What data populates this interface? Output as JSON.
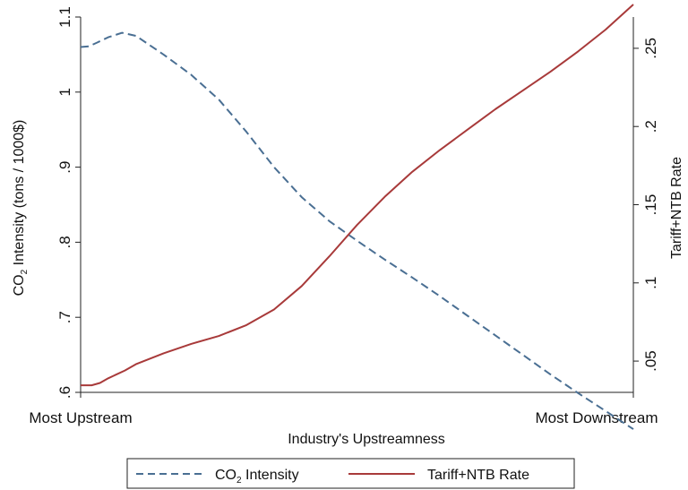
{
  "chart_data": {
    "type": "line",
    "title": "",
    "xlabel": "Industry's Upstreamness",
    "x_tick_labels": [
      "Most Upstream",
      "Most Downstream"
    ],
    "xlim": [
      0,
      1
    ],
    "ylabel_left": {
      "main": "CO",
      "sub": "2",
      "rest": " Intensity (tons / 1000$)"
    },
    "ylabel_right": "Tariff+NTB Rate",
    "ylim_left": [
      0.6,
      1.1
    ],
    "ylim_right": [
      0.03,
      0.27
    ],
    "y_left_ticks": [
      {
        "value": 0.6,
        "label": ".6"
      },
      {
        "value": 0.7,
        "label": ".7"
      },
      {
        "value": 0.8,
        "label": ".8"
      },
      {
        "value": 0.9,
        "label": ".9"
      },
      {
        "value": 1.0,
        "label": "1"
      },
      {
        "value": 1.1,
        "label": "1.1"
      }
    ],
    "y_right_ticks": [
      {
        "value": 0.05,
        "label": ".05"
      },
      {
        "value": 0.1,
        "label": ".1"
      },
      {
        "value": 0.15,
        "label": ".15"
      },
      {
        "value": 0.2,
        "label": ".2"
      },
      {
        "value": 0.25,
        "label": ".25"
      }
    ],
    "series": [
      {
        "name": "CO₂ Intensity",
        "legend": {
          "main": "CO",
          "sub": "2",
          "rest": " Intensity"
        },
        "axis": "left",
        "color": "#4a6f93",
        "dash": true,
        "x": [
          0,
          0.015,
          0.03,
          0.05,
          0.075,
          0.1,
          0.15,
          0.2,
          0.25,
          0.3,
          0.35,
          0.4,
          0.45,
          0.5,
          0.55,
          0.6,
          0.65,
          0.7,
          0.75,
          0.8,
          0.85,
          0.9,
          0.95,
          1.0
        ],
        "values": [
          1.06,
          1.061,
          1.066,
          1.073,
          1.079,
          1.075,
          1.05,
          1.023,
          0.99,
          0.947,
          0.9,
          0.86,
          0.828,
          0.802,
          0.777,
          0.753,
          0.728,
          0.702,
          0.676,
          0.65,
          0.624,
          0.599,
          0.575,
          0.551
        ]
      },
      {
        "name": "Tariff+NTB Rate",
        "axis": "right",
        "color": "#a83a3a",
        "dash": false,
        "x": [
          0,
          0.02,
          0.035,
          0.05,
          0.08,
          0.1,
          0.15,
          0.2,
          0.25,
          0.3,
          0.35,
          0.4,
          0.45,
          0.5,
          0.55,
          0.6,
          0.65,
          0.7,
          0.75,
          0.8,
          0.85,
          0.9,
          0.95,
          1.0
        ],
        "values": [
          0.0345,
          0.0345,
          0.036,
          0.039,
          0.044,
          0.048,
          0.055,
          0.061,
          0.066,
          0.073,
          0.083,
          0.098,
          0.117,
          0.137,
          0.155,
          0.171,
          0.185,
          0.198,
          0.211,
          0.223,
          0.235,
          0.248,
          0.262,
          0.278
        ]
      }
    ],
    "grid": false,
    "legend_position": "bottom"
  }
}
